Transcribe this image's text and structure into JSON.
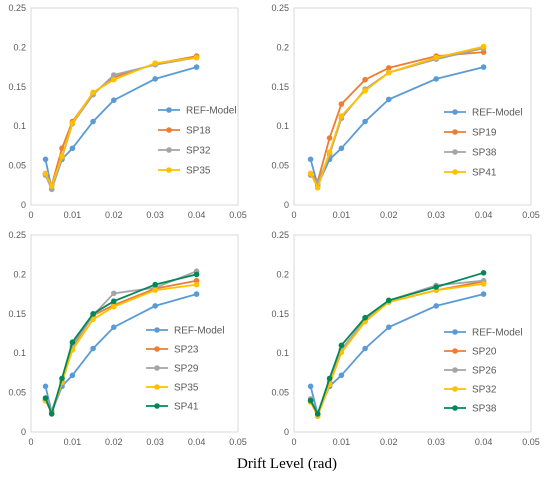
{
  "figure": {
    "xlabel": "Drift Level (rad)"
  },
  "chart_data": [
    {
      "type": "line",
      "xlim": [
        0,
        0.05
      ],
      "ylim": [
        0,
        0.25
      ],
      "xticks": [
        "0",
        "0.01",
        "0.02",
        "0.03",
        "0.04",
        "0.05"
      ],
      "yticks": [
        "0",
        "0.05",
        "0.1",
        "0.15",
        "0.2",
        "0.25"
      ],
      "grid": false,
      "legend": "right",
      "x": [
        0.0035,
        0.005,
        0.0075,
        0.01,
        0.015,
        0.02,
        0.03,
        0.04
      ],
      "series": [
        {
          "name": "REF-Model",
          "color": "#5B9BD5",
          "values": [
            0.058,
            0.02,
            0.058,
            0.072,
            0.106,
            0.133,
            0.16,
            0.175
          ]
        },
        {
          "name": "SP18",
          "color": "#ED7D31",
          "values": [
            0.04,
            0.025,
            0.072,
            0.106,
            0.142,
            0.162,
            0.179,
            0.189
          ]
        },
        {
          "name": "SP32",
          "color": "#A5A5A5",
          "values": [
            0.038,
            0.02,
            0.06,
            0.103,
            0.14,
            0.165,
            0.178,
            0.187
          ]
        },
        {
          "name": "SP35",
          "color": "#FFC000",
          "values": [
            0.04,
            0.024,
            0.062,
            0.104,
            0.143,
            0.159,
            0.18,
            0.187
          ]
        }
      ]
    },
    {
      "type": "line",
      "xlim": [
        0,
        0.05
      ],
      "ylim": [
        0,
        0.25
      ],
      "xticks": [
        "0",
        "0.01",
        "0.02",
        "0.03",
        "0.04",
        "0.05"
      ],
      "yticks": [
        "0",
        "0.05",
        "0.1",
        "0.15",
        "0.2",
        "0.25"
      ],
      "grid": false,
      "legend": "right",
      "x": [
        0.0035,
        0.005,
        0.0075,
        0.01,
        0.015,
        0.02,
        0.03,
        0.04
      ],
      "series": [
        {
          "name": "REF-Model",
          "color": "#5B9BD5",
          "values": [
            0.058,
            0.025,
            0.058,
            0.072,
            0.106,
            0.134,
            0.16,
            0.175
          ]
        },
        {
          "name": "SP19",
          "color": "#ED7D31",
          "values": [
            0.04,
            0.03,
            0.085,
            0.128,
            0.159,
            0.174,
            0.189,
            0.194
          ]
        },
        {
          "name": "SP38",
          "color": "#A5A5A5",
          "values": [
            0.038,
            0.028,
            0.064,
            0.11,
            0.147,
            0.168,
            0.185,
            0.199
          ]
        },
        {
          "name": "SP41",
          "color": "#FFC000",
          "values": [
            0.04,
            0.022,
            0.067,
            0.113,
            0.145,
            0.168,
            0.187,
            0.201
          ]
        }
      ]
    },
    {
      "type": "line",
      "xlim": [
        0,
        0.05
      ],
      "ylim": [
        0,
        0.25
      ],
      "xticks": [
        "0",
        "0.01",
        "0.02",
        "0.03",
        "0.04",
        "0.05"
      ],
      "yticks": [
        "0",
        "0.05",
        "0.1",
        "0.15",
        "0.2",
        "0.25"
      ],
      "grid": false,
      "legend": "right",
      "x": [
        0.0035,
        0.005,
        0.0075,
        0.01,
        0.015,
        0.02,
        0.03,
        0.04
      ],
      "series": [
        {
          "name": "REF-Model",
          "color": "#5B9BD5",
          "values": [
            0.058,
            0.025,
            0.058,
            0.072,
            0.106,
            0.133,
            0.16,
            0.175
          ]
        },
        {
          "name": "SP23",
          "color": "#ED7D31",
          "values": [
            0.04,
            0.025,
            0.064,
            0.108,
            0.148,
            0.161,
            0.182,
            0.192
          ]
        },
        {
          "name": "SP29",
          "color": "#A5A5A5",
          "values": [
            0.04,
            0.027,
            0.063,
            0.11,
            0.148,
            0.176,
            0.183,
            0.204
          ]
        },
        {
          "name": "SP35",
          "color": "#FFC000",
          "values": [
            0.04,
            0.024,
            0.063,
            0.104,
            0.143,
            0.159,
            0.18,
            0.187
          ]
        },
        {
          "name": "SP41",
          "color": "#00875A",
          "values": [
            0.043,
            0.023,
            0.068,
            0.114,
            0.15,
            0.166,
            0.187,
            0.2
          ]
        }
      ]
    },
    {
      "type": "line",
      "xlim": [
        0,
        0.05
      ],
      "ylim": [
        0,
        0.25
      ],
      "xticks": [
        "0",
        "0.01",
        "0.02",
        "0.03",
        "0.04",
        "0.05"
      ],
      "yticks": [
        "0",
        "0.05",
        "0.1",
        "0.15",
        "0.2",
        "0.25"
      ],
      "grid": false,
      "legend": "right",
      "x": [
        0.0035,
        0.005,
        0.0075,
        0.01,
        0.015,
        0.02,
        0.03,
        0.04
      ],
      "series": [
        {
          "name": "REF-Model",
          "color": "#5B9BD5",
          "values": [
            0.058,
            0.023,
            0.058,
            0.072,
            0.106,
            0.133,
            0.16,
            0.175
          ]
        },
        {
          "name": "SP20",
          "color": "#ED7D31",
          "values": [
            0.04,
            0.021,
            0.064,
            0.105,
            0.141,
            0.165,
            0.18,
            0.191
          ]
        },
        {
          "name": "SP26",
          "color": "#A5A5A5",
          "values": [
            0.042,
            0.023,
            0.063,
            0.104,
            0.143,
            0.167,
            0.186,
            0.192
          ]
        },
        {
          "name": "SP32",
          "color": "#FFC000",
          "values": [
            0.038,
            0.02,
            0.06,
            0.101,
            0.14,
            0.165,
            0.18,
            0.188
          ]
        },
        {
          "name": "SP38",
          "color": "#00875A",
          "values": [
            0.04,
            0.023,
            0.068,
            0.11,
            0.145,
            0.167,
            0.184,
            0.202
          ]
        }
      ]
    }
  ]
}
